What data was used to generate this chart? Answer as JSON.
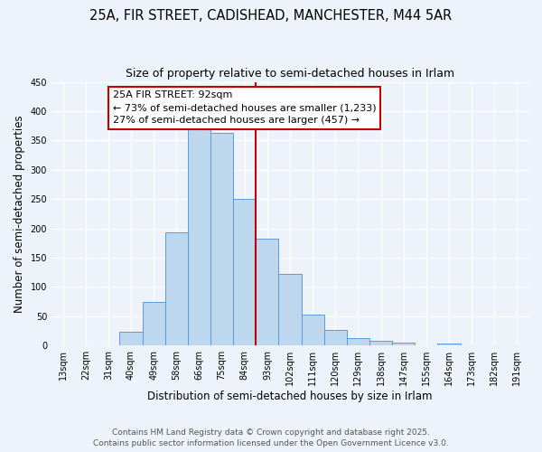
{
  "title": "25A, FIR STREET, CADISHEAD, MANCHESTER, M44 5AR",
  "subtitle": "Size of property relative to semi-detached houses in Irlam",
  "xlabel": "Distribution of semi-detached houses by size in Irlam",
  "ylabel": "Number of semi-detached properties",
  "categories": [
    "13sqm",
    "22sqm",
    "31sqm",
    "40sqm",
    "49sqm",
    "58sqm",
    "66sqm",
    "75sqm",
    "84sqm",
    "93sqm",
    "102sqm",
    "111sqm",
    "120sqm",
    "129sqm",
    "138sqm",
    "147sqm",
    "155sqm",
    "164sqm",
    "173sqm",
    "182sqm",
    "191sqm"
  ],
  "values": [
    0,
    1,
    0,
    23,
    75,
    193,
    375,
    363,
    251,
    183,
    122,
    53,
    26,
    13,
    8,
    5,
    0,
    4,
    0,
    0,
    1
  ],
  "bar_color": "#bdd7ee",
  "bar_edge_color": "#5b9bd5",
  "vline_x_idx": 8.5,
  "vline_color": "#c00000",
  "annotation_text": "25A FIR STREET: 92sqm\n← 73% of semi-detached houses are smaller (1,233)\n27% of semi-detached houses are larger (457) →",
  "annotation_box_color": "#ffffff",
  "annotation_box_edge": "#c00000",
  "ylim": [
    0,
    450
  ],
  "yticks": [
    0,
    50,
    100,
    150,
    200,
    250,
    300,
    350,
    400,
    450
  ],
  "background_color": "#eef2fb",
  "grid_color": "#ffffff",
  "footer1": "Contains HM Land Registry data © Crown copyright and database right 2025.",
  "footer2": "Contains public sector information licensed under the Open Government Licence v3.0.",
  "title_fontsize": 10.5,
  "subtitle_fontsize": 9,
  "axis_label_fontsize": 8.5,
  "tick_fontsize": 7,
  "annotation_fontsize": 8,
  "footer_fontsize": 6.5
}
